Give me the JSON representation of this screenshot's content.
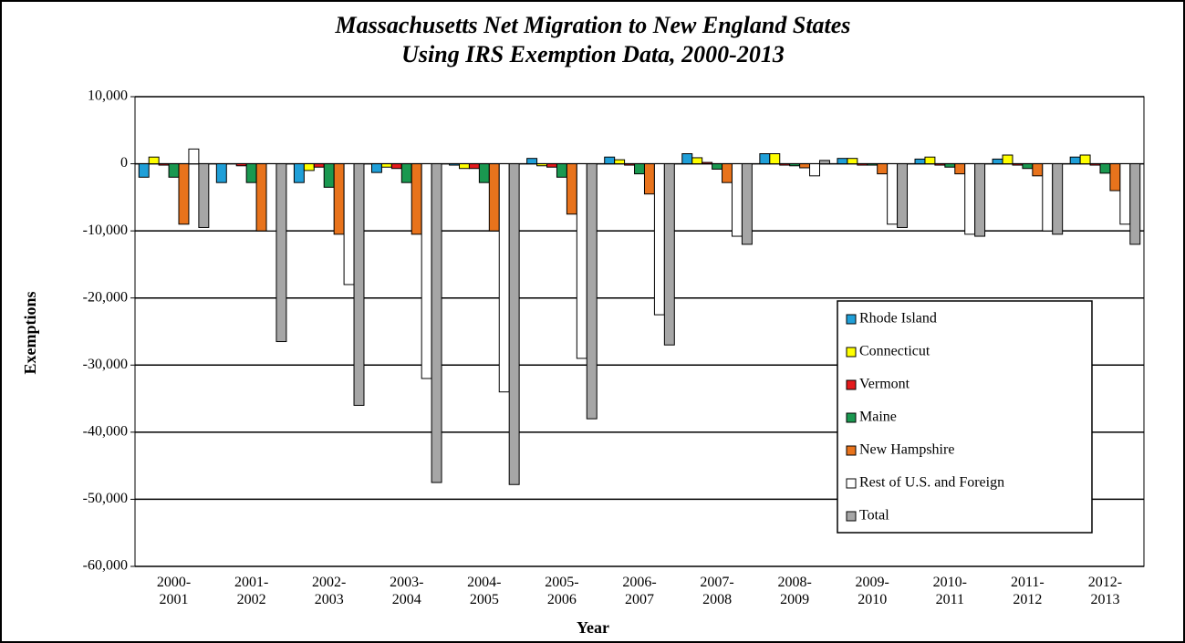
{
  "chart_data": {
    "type": "bar",
    "title": "Massachusetts Net Migration to New England States",
    "subtitle": "Using IRS Exemption Data, 2000-2013",
    "x_label": "Year",
    "y_label": "Exemptions",
    "categories": [
      "2000-2001",
      "2001-2002",
      "2002-2003",
      "2003-2004",
      "2004-2005",
      "2005-2006",
      "2006-2007",
      "2007-2008",
      "2008-2009",
      "2009-2010",
      "2010-2011",
      "2011-2012",
      "2012-2013"
    ],
    "series": [
      {
        "name": "Rhode Island",
        "color": "#1f9fd8",
        "values": [
          -2000,
          -2800,
          -2800,
          -1300,
          -200,
          800,
          1000,
          1500,
          1500,
          800,
          700,
          700,
          1000
        ]
      },
      {
        "name": "Connecticut",
        "color": "#ffff00",
        "values": [
          1000,
          0,
          -1000,
          -500,
          -700,
          -300,
          600,
          900,
          1500,
          800,
          1000,
          1300,
          1300
        ]
      },
      {
        "name": "Vermont",
        "color": "#e41a1c",
        "values": [
          -200,
          -300,
          -500,
          -700,
          -700,
          -500,
          -200,
          200,
          -200,
          -200,
          -200,
          -200,
          -200
        ]
      },
      {
        "name": "Maine",
        "color": "#1a9850",
        "values": [
          -2000,
          -2800,
          -3500,
          -2800,
          -2800,
          -2000,
          -1500,
          -800,
          -300,
          -200,
          -500,
          -700,
          -1400
        ]
      },
      {
        "name": "New Hampshire",
        "color": "#e8731c",
        "values": [
          -9000,
          -10000,
          -10500,
          -10500,
          -10000,
          -7500,
          -4500,
          -2800,
          -600,
          -1500,
          -1500,
          -1800,
          -4000
        ]
      },
      {
        "name": "Rest of U.S. and Foreign",
        "color": "#ffffff",
        "values": [
          2200,
          -10000,
          -18000,
          -32000,
          -34000,
          -29000,
          -22500,
          -10800,
          -1800,
          -9000,
          -10500,
          -10000,
          -9000
        ]
      },
      {
        "name": "Total",
        "color": "#a6a6a6",
        "values": [
          -9500,
          -26500,
          -36000,
          -47500,
          -47800,
          -38000,
          -27000,
          -12000,
          500,
          -9500,
          -10800,
          -10500,
          -12000
        ]
      }
    ],
    "ylim": [
      -60000,
      10000
    ],
    "yticks": [
      {
        "value": -60000,
        "label": "-60,000"
      },
      {
        "value": -50000,
        "label": "-50,000"
      },
      {
        "value": -40000,
        "label": "-40,000"
      },
      {
        "value": -30000,
        "label": "-30,000"
      },
      {
        "value": -20000,
        "label": "-20,000"
      },
      {
        "value": -10000,
        "label": "-10,000"
      },
      0,
      {
        "value": 10000,
        "label": "10,000"
      }
    ],
    "grid": true,
    "legend": "lower right"
  }
}
